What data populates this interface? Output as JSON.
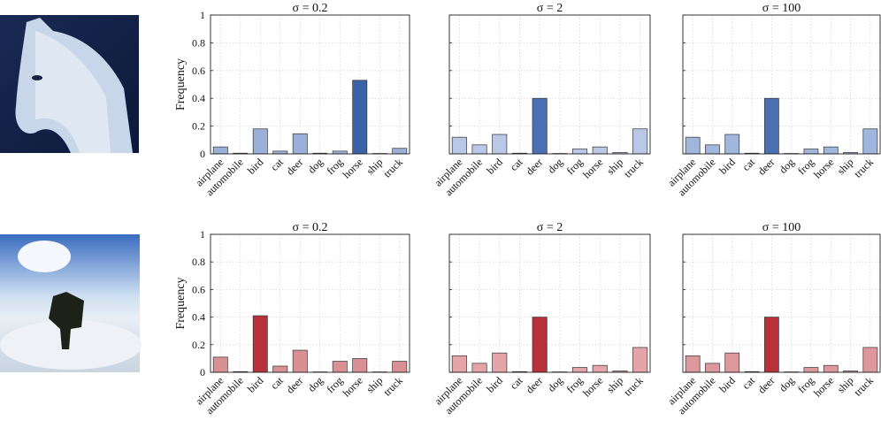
{
  "chart_data": [
    {
      "type": "bar",
      "title": "σ = 0.2",
      "ylabel": "Frequency",
      "ytick_labels": true,
      "categories": [
        "airplane",
        "automobile",
        "bird",
        "cat",
        "deer",
        "dog",
        "frog",
        "horse",
        "ship",
        "truck"
      ],
      "values": [
        0.05,
        0.005,
        0.18,
        0.02,
        0.145,
        0.005,
        0.02,
        0.53,
        0.003,
        0.04
      ],
      "colors": [
        "#9ab0d8",
        "#9ab0d8",
        "#9ab0d8",
        "#9ab0d8",
        "#9ab0d8",
        "#9ab0d8",
        "#9ab0d8",
        "#3a62a8",
        "#9ab0d8",
        "#9ab0d8"
      ],
      "ylim": [
        0,
        1
      ],
      "yticks": [
        0,
        0.2,
        0.4,
        0.6,
        0.8,
        1
      ],
      "grid": true
    },
    {
      "type": "bar",
      "title": "σ = 2",
      "ytick_labels": false,
      "categories": [
        "airplane",
        "automobile",
        "bird",
        "cat",
        "deer",
        "dog",
        "frog",
        "horse",
        "ship",
        "truck"
      ],
      "values": [
        0.12,
        0.065,
        0.14,
        0.005,
        0.4,
        0.003,
        0.035,
        0.05,
        0.01,
        0.18
      ],
      "colors": [
        "#b8c8e6",
        "#b8c8e6",
        "#b8c8e6",
        "#b8c8e6",
        "#4a70b4",
        "#b8c8e6",
        "#b8c8e6",
        "#b8c8e6",
        "#b8c8e6",
        "#b8c8e6"
      ],
      "ylim": [
        0,
        1
      ],
      "yticks": [
        0,
        0.2,
        0.4,
        0.6,
        0.8,
        1
      ],
      "grid": true
    },
    {
      "type": "bar",
      "title": "σ = 100",
      "ytick_labels": false,
      "categories": [
        "airplane",
        "automobile",
        "bird",
        "cat",
        "deer",
        "dog",
        "frog",
        "horse",
        "ship",
        "truck"
      ],
      "values": [
        0.12,
        0.065,
        0.14,
        0.005,
        0.4,
        0.003,
        0.035,
        0.05,
        0.01,
        0.18
      ],
      "colors": [
        "#a0b6dc",
        "#a0b6dc",
        "#a0b6dc",
        "#a0b6dc",
        "#4a70b4",
        "#a0b6dc",
        "#a0b6dc",
        "#a0b6dc",
        "#a0b6dc",
        "#a0b6dc"
      ],
      "ylim": [
        0,
        1
      ],
      "yticks": [
        0,
        0.2,
        0.4,
        0.6,
        0.8,
        1
      ],
      "grid": true
    },
    {
      "type": "bar",
      "title": "σ = 0.2",
      "ylabel": "Frequency",
      "ytick_labels": true,
      "categories": [
        "airplane",
        "automobile",
        "bird",
        "cat",
        "deer",
        "dog",
        "frog",
        "horse",
        "ship",
        "truck"
      ],
      "values": [
        0.11,
        0.005,
        0.41,
        0.045,
        0.16,
        0.003,
        0.08,
        0.1,
        0.003,
        0.08
      ],
      "colors": [
        "#d89094",
        "#d89094",
        "#b83038",
        "#d89094",
        "#d89094",
        "#d89094",
        "#d89094",
        "#d89094",
        "#d89094",
        "#d89094"
      ],
      "ylim": [
        0,
        1
      ],
      "yticks": [
        0,
        0.2,
        0.4,
        0.6,
        0.8,
        1
      ],
      "grid": true
    },
    {
      "type": "bar",
      "title": "σ = 2",
      "ytick_labels": false,
      "categories": [
        "airplane",
        "automobile",
        "bird",
        "cat",
        "deer",
        "dog",
        "frog",
        "horse",
        "ship",
        "truck"
      ],
      "values": [
        0.12,
        0.065,
        0.14,
        0.005,
        0.4,
        0.003,
        0.035,
        0.05,
        0.01,
        0.18
      ],
      "colors": [
        "#e4a4a8",
        "#e4a4a8",
        "#e4a4a8",
        "#e4a4a8",
        "#b83038",
        "#e4a4a8",
        "#e4a4a8",
        "#e4a4a8",
        "#e4a4a8",
        "#e4a4a8"
      ],
      "ylim": [
        0,
        1
      ],
      "yticks": [
        0,
        0.2,
        0.4,
        0.6,
        0.8,
        1
      ],
      "grid": true
    },
    {
      "type": "bar",
      "title": "σ = 100",
      "ytick_labels": false,
      "categories": [
        "airplane",
        "automobile",
        "bird",
        "cat",
        "deer",
        "dog",
        "frog",
        "horse",
        "ship",
        "truck"
      ],
      "values": [
        0.12,
        0.065,
        0.14,
        0.005,
        0.4,
        0.003,
        0.035,
        0.05,
        0.01,
        0.18
      ],
      "colors": [
        "#dc989c",
        "#dc989c",
        "#dc989c",
        "#dc989c",
        "#b83038",
        "#dc989c",
        "#dc989c",
        "#dc989c",
        "#dc989c",
        "#dc989c"
      ],
      "ylim": [
        0,
        1
      ],
      "yticks": [
        0,
        0.2,
        0.4,
        0.6,
        0.8,
        1
      ],
      "grid": true
    }
  ]
}
